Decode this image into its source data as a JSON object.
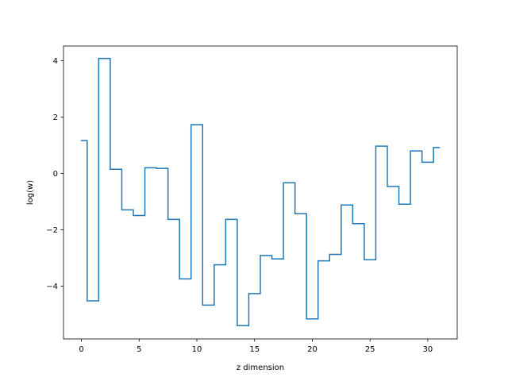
{
  "chart_data": {
    "type": "line",
    "drawstyle": "steps-post",
    "xlabel": "z dimension",
    "ylabel": "log(w)",
    "xlim": [
      -1.55,
      32.55
    ],
    "ylim": [
      -5.87,
      4.52
    ],
    "xticks": [
      0,
      5,
      10,
      15,
      20,
      25,
      30
    ],
    "yticks": [
      -4,
      -2,
      0,
      2,
      4
    ],
    "xtick_labels": [
      "0",
      "5",
      "10",
      "15",
      "20",
      "25",
      "30"
    ],
    "ytick_labels": [
      "−4",
      "−2",
      "0",
      "2",
      "4"
    ],
    "grid": false,
    "series": [
      {
        "color": "#1f77b4",
        "x": [
          0,
          0.5,
          1.5,
          2.5,
          3.5,
          4.5,
          5.5,
          6.5,
          7.5,
          8.5,
          9.5,
          10.5,
          11.5,
          12.5,
          13.5,
          14.5,
          15.5,
          16.5,
          17.5,
          18.5,
          19.5,
          20.5,
          21.5,
          22.5,
          23.5,
          24.5,
          25.5,
          26.5,
          27.5,
          28.5,
          29.5,
          30.5,
          31
        ],
        "y": [
          1.17,
          -4.52,
          4.08,
          0.15,
          -1.29,
          -1.49,
          0.2,
          0.18,
          -1.63,
          -3.74,
          1.73,
          -4.67,
          -3.24,
          -1.63,
          -5.4,
          -4.26,
          -2.91,
          -3.03,
          -0.33,
          -1.43,
          -5.16,
          -3.1,
          -2.87,
          -1.12,
          -1.78,
          -3.06,
          0.97,
          -0.46,
          -1.09,
          0.8,
          0.4,
          0.92,
          0.92
        ]
      }
    ]
  }
}
